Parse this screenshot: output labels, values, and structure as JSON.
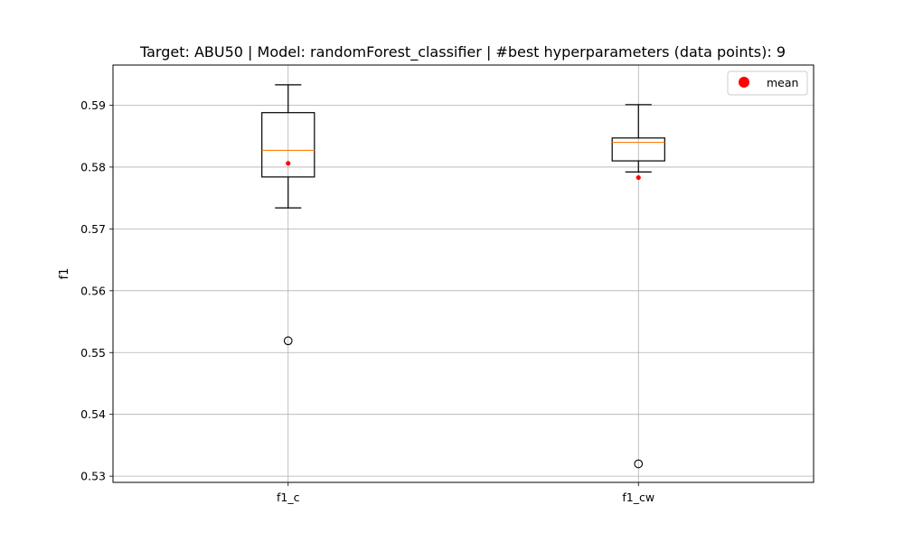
{
  "chart_data": {
    "type": "box",
    "title": "Target: ABU50 | Model: randomForest_classifier | #best hyperparameters (data points): 9",
    "xlabel": "",
    "ylabel": "f1",
    "ylim": [
      0.529,
      0.5965
    ],
    "yticks": [
      0.53,
      0.54,
      0.55,
      0.56,
      0.57,
      0.58,
      0.59
    ],
    "ytick_labels": [
      "0.53",
      "0.54",
      "0.55",
      "0.56",
      "0.57",
      "0.58",
      "0.59"
    ],
    "grid": true,
    "legend": {
      "position": "top-right",
      "entries": [
        {
          "label": "mean",
          "color": "#ff0000"
        }
      ]
    },
    "categories": [
      "f1_c",
      "f1_cw"
    ],
    "boxes": [
      {
        "name": "f1_c",
        "whisker_low": 0.5734,
        "q1": 0.5784,
        "median": 0.5827,
        "q3": 0.5888,
        "whisker_high": 0.5933,
        "mean": 0.5806,
        "outliers": [
          0.5519
        ]
      },
      {
        "name": "f1_cw",
        "whisker_low": 0.5792,
        "q1": 0.581,
        "median": 0.584,
        "q3": 0.5847,
        "whisker_high": 0.5901,
        "mean": 0.5783,
        "outliers": [
          0.532
        ]
      }
    ],
    "colors": {
      "box": "#000000",
      "median": "#ff7f0e",
      "mean": "#ff0000",
      "grid": "#b0b0b0"
    }
  }
}
